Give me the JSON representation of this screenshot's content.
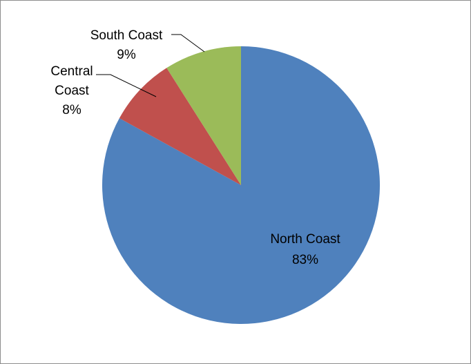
{
  "chart_data": {
    "type": "pie",
    "categories": [
      "North Coast",
      "Central Coast",
      "South Coast"
    ],
    "values": [
      83,
      8,
      9
    ],
    "labels": [
      {
        "lines": [
          "North Coast",
          "83%"
        ]
      },
      {
        "lines": [
          "Central",
          "Coast",
          "8%"
        ]
      },
      {
        "lines": [
          "South Coast",
          "9%"
        ]
      }
    ],
    "colors": [
      "#4f81bd",
      "#c0504d",
      "#9bbb59"
    ],
    "start_angle_deg": 0,
    "direction": "clockwise",
    "legend": "none",
    "title": ""
  }
}
